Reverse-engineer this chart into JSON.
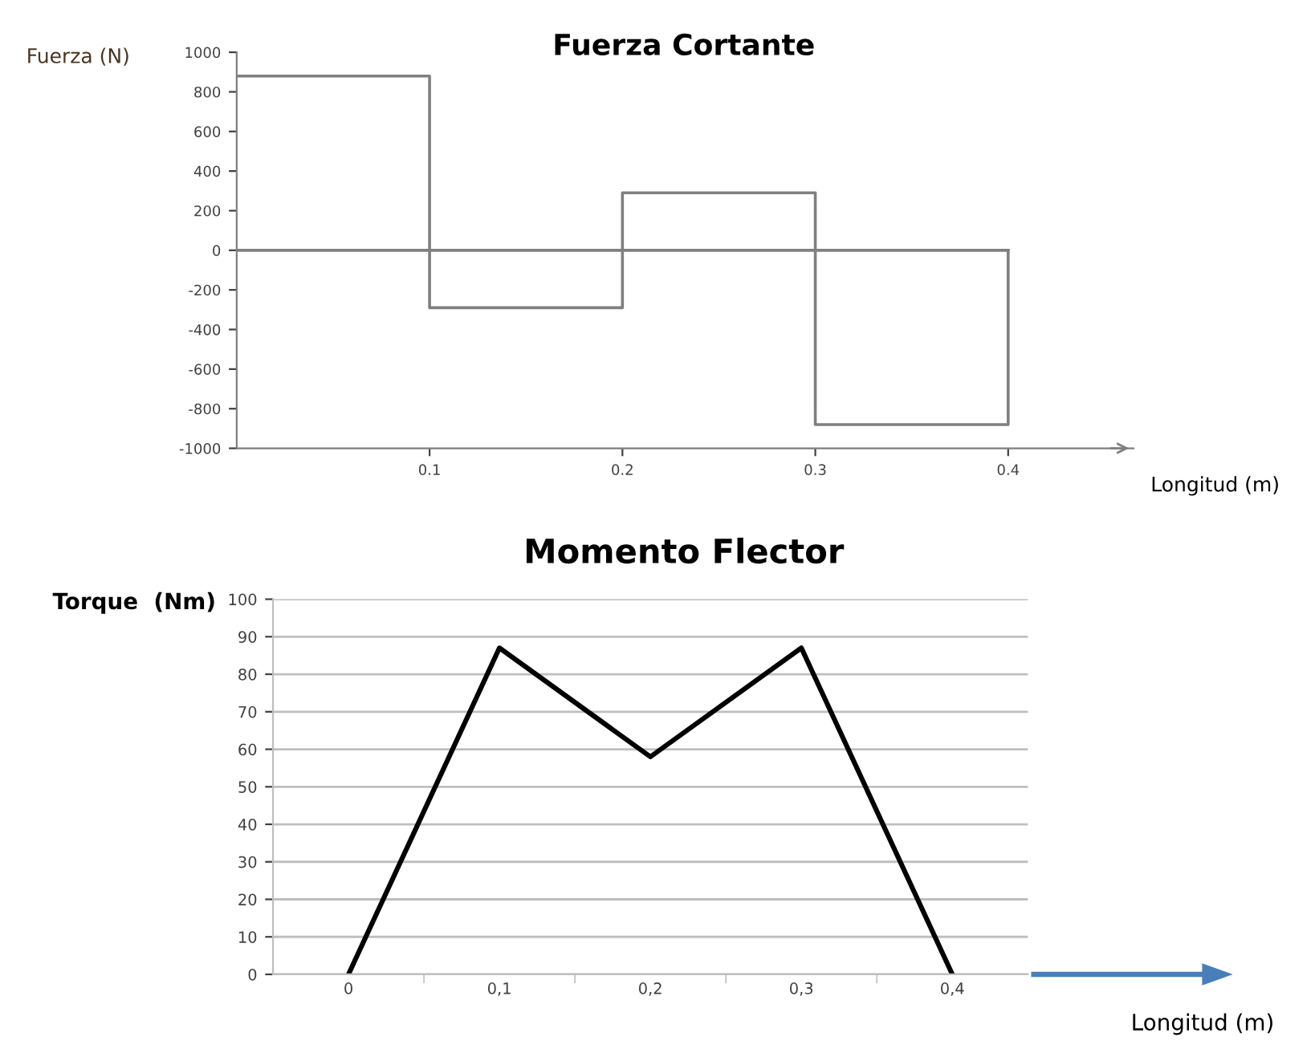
{
  "chart_data": [
    {
      "type": "step",
      "title": "Fuerza Cortante",
      "xlabel": "Longitud (m)",
      "ylabel": "Fuerza (N)",
      "series": [
        {
          "type": "step",
          "x": [
            0,
            0.1,
            0.2,
            0.3,
            0.4,
            0.4
          ],
          "values": [
            880,
            -290,
            290,
            -880,
            -880,
            0
          ],
          "color": "#7f7f7f"
        },
        {
          "type": "line",
          "x": [
            0,
            0.4
          ],
          "values": [
            0,
            0
          ],
          "color": "#7f7f7f"
        }
      ],
      "xlim": [
        0,
        0.465
      ],
      "xticks": [
        0.1,
        0.2,
        0.3,
        0.4
      ],
      "ylim": [
        -1000,
        1000
      ],
      "yticks": [
        -1000,
        -800,
        -600,
        -400,
        -200,
        0,
        200,
        400,
        600,
        800,
        1000
      ],
      "grid": false
    },
    {
      "type": "line",
      "title": "Momento Flector",
      "xlabel": "Longitud (m)",
      "ylabel": "Torque  (Nm)",
      "categories": [
        "0",
        "0,1",
        "0,2",
        "0,3",
        "0,4"
      ],
      "series": [
        {
          "values": [
            0,
            87,
            58,
            87,
            0
          ],
          "color": "#000000"
        }
      ],
      "ylim": [
        0,
        100
      ],
      "yticks": [
        0,
        10,
        20,
        30,
        40,
        50,
        60,
        70,
        80,
        90,
        100
      ],
      "grid": "y"
    }
  ]
}
